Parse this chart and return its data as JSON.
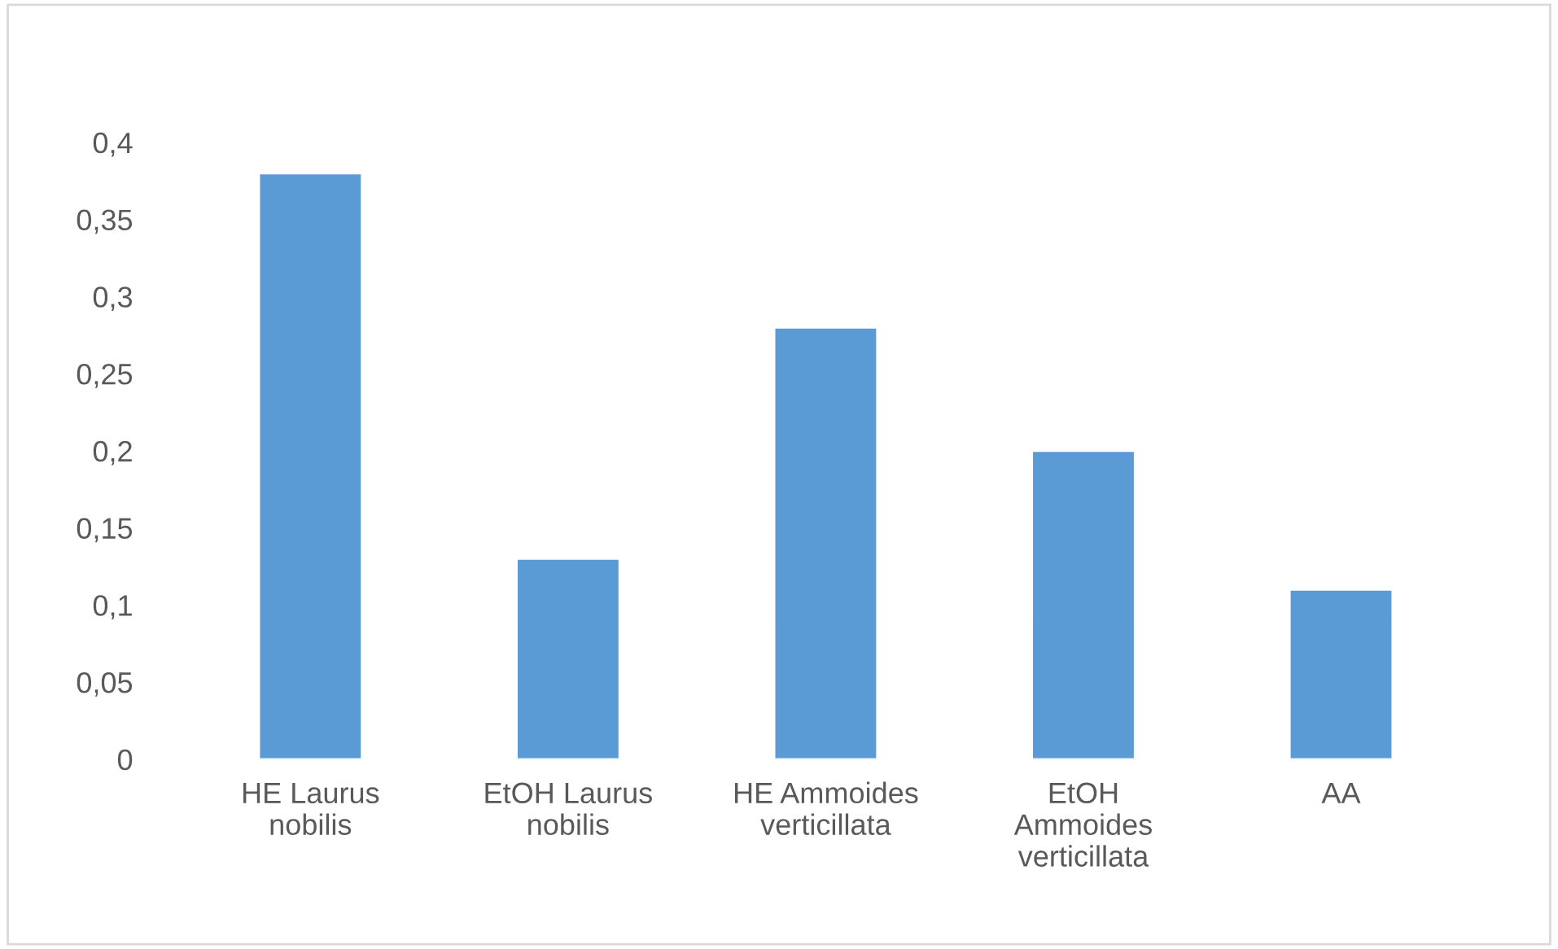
{
  "chart_data": {
    "type": "bar",
    "categories": [
      "HE Laurus\nnobilis",
      "EtOH Laurus\nnobilis",
      "HE Ammoides\nverticillata",
      "EtOH\nAmmoides\nverticillata",
      "AA"
    ],
    "values": [
      0.38,
      0.13,
      0.28,
      0.2,
      0.11
    ],
    "color": "#5b9bd5",
    "ylim": [
      0,
      0.4
    ],
    "yticks": [
      {
        "value": 0,
        "label": "0"
      },
      {
        "value": 0.05,
        "label": "0,05"
      },
      {
        "value": 0.1,
        "label": "0,1"
      },
      {
        "value": 0.15,
        "label": "0,15"
      },
      {
        "value": 0.2,
        "label": "0,2"
      },
      {
        "value": 0.25,
        "label": "0,25"
      },
      {
        "value": 0.3,
        "label": "0,3"
      },
      {
        "value": 0.35,
        "label": "0,35"
      },
      {
        "value": 0.4,
        "label": "0,4"
      }
    ],
    "grid": false
  }
}
